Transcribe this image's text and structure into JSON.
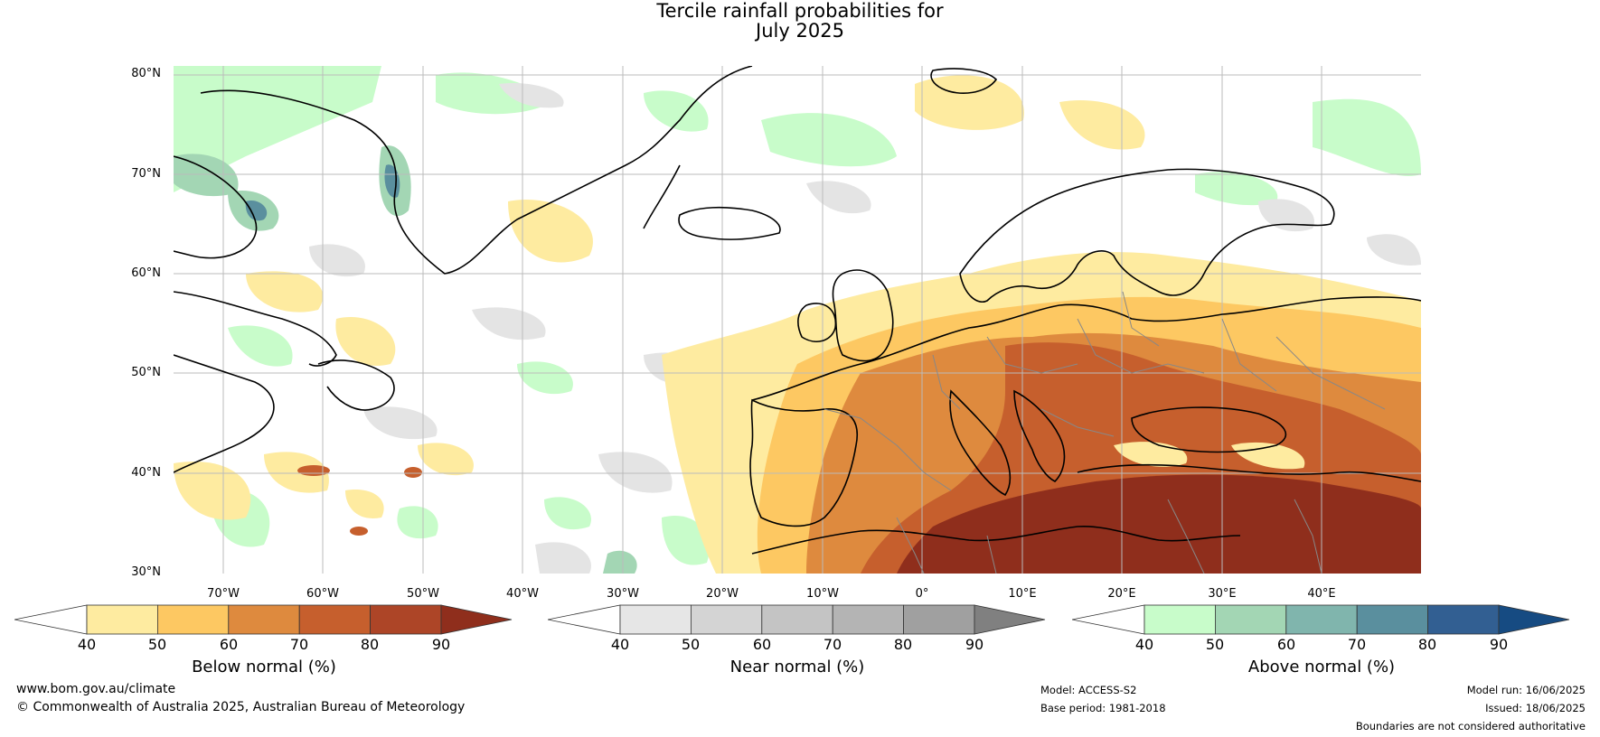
{
  "title": {
    "line1": "Tercile rainfall probabilities for",
    "line2": "July 2025"
  },
  "map": {
    "lat_labels": [
      "80°N",
      "70°N",
      "60°N",
      "50°N",
      "40°N",
      "30°N"
    ],
    "lon_labels": [
      "70°W",
      "60°W",
      "50°W",
      "40°W",
      "30°W",
      "20°W",
      "10°W",
      "0°",
      "10°E",
      "20°E",
      "30°E",
      "40°E"
    ],
    "colors": {
      "land_outline": "#000000",
      "border_outline": "#888888",
      "gridline": "#bbbbbb"
    }
  },
  "colorbars": [
    {
      "title": "Below normal (%)",
      "ticks": [
        "40",
        "50",
        "60",
        "70",
        "80",
        "90"
      ],
      "colors": [
        "#ffffff",
        "#feeba0",
        "#fdc862",
        "#de8a3e",
        "#c65f2d",
        "#ad4527",
        "#8f2e1c"
      ]
    },
    {
      "title": "Near normal (%)",
      "ticks": [
        "40",
        "50",
        "60",
        "70",
        "80",
        "90"
      ],
      "colors": [
        "#ffffff",
        "#e6e6e6",
        "#d4d4d4",
        "#c4c4c4",
        "#b4b4b4",
        "#a0a0a0",
        "#808080"
      ]
    },
    {
      "title": "Above normal (%)",
      "ticks": [
        "40",
        "50",
        "60",
        "70",
        "80",
        "90"
      ],
      "colors": [
        "#ffffff",
        "#c8fcca",
        "#a3d6b4",
        "#80b5ad",
        "#5a8f9e",
        "#325f92",
        "#164b82"
      ]
    }
  ],
  "footer": {
    "website": "www.bom.gov.au/climate",
    "copyright": "© Commonwealth of Australia 2025, Australian Bureau of Meteorology",
    "model": "Model: ACCESS-S2",
    "base_period": "Base period: 1981-2018",
    "model_run": "Model run: 16/06/2025",
    "issued": "Issued: 18/06/2025",
    "disclaimer": "Boundaries are not considered authoritative"
  }
}
